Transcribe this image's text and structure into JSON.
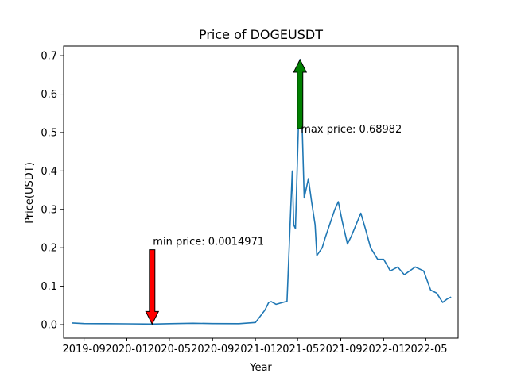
{
  "chart_data": {
    "type": "line",
    "title": "Price of DOGEUSDT",
    "xlabel": "Year",
    "ylabel": "Price(USDT)",
    "x_ticks": [
      "2019-09",
      "2020-01",
      "2020-05",
      "2020-09",
      "2021-01",
      "2021-05",
      "2021-09",
      "2022-01",
      "2022-05"
    ],
    "xlim": [
      "2019-07-05",
      "2022-08-01"
    ],
    "ylim": [
      -0.035,
      0.725
    ],
    "y_ticks": [
      0.0,
      0.1,
      0.2,
      0.3,
      0.4,
      0.5,
      0.6,
      0.7
    ],
    "y_tick_labels": [
      "0.0",
      "0.1",
      "0.2",
      "0.3",
      "0.4",
      "0.5",
      "0.6",
      "0.7"
    ],
    "grid": false,
    "series": [
      {
        "color": "#1f77b4",
        "x": [
          "2019-07-30",
          "2019-09-01",
          "2019-11-01",
          "2020-01-01",
          "2020-03-13",
          "2020-05-01",
          "2020-07-07",
          "2020-09-01",
          "2020-11-15",
          "2021-01-01",
          "2021-01-28",
          "2021-02-08",
          "2021-02-15",
          "2021-03-01",
          "2021-04-01",
          "2021-04-15",
          "2021-04-16",
          "2021-04-20",
          "2021-04-25",
          "2021-05-03",
          "2021-05-08",
          "2021-05-15",
          "2021-05-20",
          "2021-06-01",
          "2021-06-10",
          "2021-06-20",
          "2021-06-25",
          "2021-07-10",
          "2021-07-20",
          "2021-08-15",
          "2021-08-25",
          "2021-09-05",
          "2021-09-20",
          "2021-10-01",
          "2021-10-28",
          "2021-11-10",
          "2021-11-25",
          "2021-12-15",
          "2022-01-01",
          "2022-01-20",
          "2022-02-10",
          "2022-03-01",
          "2022-04-01",
          "2022-04-25",
          "2022-05-15",
          "2022-06-01",
          "2022-06-18",
          "2022-07-01",
          "2022-07-12"
        ],
        "y": [
          0.0045,
          0.0027,
          0.0025,
          0.0022,
          0.0015,
          0.0025,
          0.0037,
          0.0028,
          0.0026,
          0.0057,
          0.038,
          0.058,
          0.06,
          0.053,
          0.061,
          0.38,
          0.4,
          0.26,
          0.25,
          0.5,
          0.69,
          0.49,
          0.33,
          0.38,
          0.32,
          0.26,
          0.18,
          0.2,
          0.23,
          0.3,
          0.32,
          0.27,
          0.21,
          0.23,
          0.29,
          0.25,
          0.2,
          0.17,
          0.17,
          0.14,
          0.15,
          0.13,
          0.15,
          0.14,
          0.09,
          0.082,
          0.058,
          0.067,
          0.072
        ]
      }
    ],
    "annotations": [
      {
        "text": "max price: 0.68982",
        "x": "2021-05-08",
        "y": 0.68982,
        "arrow": "up",
        "arrow_color": "#008000",
        "arrow_base_y": 0.51
      },
      {
        "text": "min price: 0.0014971",
        "x": "2020-03-13",
        "y": 0.0014971,
        "arrow": "down",
        "arrow_color": "#ff0000",
        "arrow_base_y": 0.195
      }
    ]
  }
}
